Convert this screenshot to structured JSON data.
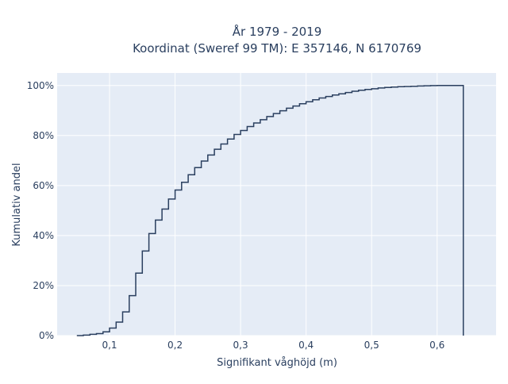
{
  "chart_data": {
    "type": "line",
    "step": true,
    "title_lines": [
      "År 1979 - 2019",
      "Koordinat (Sweref 99 TM): E 357146, N 6170769"
    ],
    "xlabel": "Signifikant våghöjd (m)",
    "ylabel": "Kumulativ andel",
    "xlim": [
      0.02,
      0.69
    ],
    "ylim": [
      0,
      1.05
    ],
    "x_ticks": [
      0.1,
      0.2,
      0.3,
      0.4,
      0.5,
      0.6
    ],
    "x_tick_labels": [
      "0,1",
      "0,2",
      "0,3",
      "0,4",
      "0,5",
      "0,6"
    ],
    "y_ticks": [
      0,
      0.2,
      0.4,
      0.6,
      0.8,
      1.0
    ],
    "y_tick_labels": [
      "0%",
      "20%",
      "40%",
      "60%",
      "80%",
      "100%"
    ],
    "grid": true,
    "colors": {
      "line": "#2a3f5f",
      "plot_bg": "#e5ecf6",
      "grid": "#ffffff",
      "text": "#2a3f5f"
    },
    "series": [
      {
        "x": [
          0.05,
          0.06,
          0.07,
          0.08,
          0.09,
          0.1,
          0.11,
          0.12,
          0.13,
          0.14,
          0.15,
          0.16,
          0.17,
          0.18,
          0.19,
          0.2,
          0.21,
          0.22,
          0.23,
          0.24,
          0.25,
          0.26,
          0.27,
          0.28,
          0.29,
          0.3,
          0.31,
          0.32,
          0.33,
          0.34,
          0.35,
          0.36,
          0.37,
          0.38,
          0.39,
          0.4,
          0.41,
          0.42,
          0.43,
          0.44,
          0.45,
          0.46,
          0.47,
          0.48,
          0.49,
          0.5,
          0.51,
          0.52,
          0.53,
          0.54,
          0.55,
          0.56,
          0.57,
          0.58,
          0.59,
          0.6,
          0.61,
          0.62,
          0.63,
          0.64
        ],
        "y": [
          0.0,
          0.002,
          0.005,
          0.008,
          0.015,
          0.03,
          0.054,
          0.095,
          0.16,
          0.25,
          0.338,
          0.408,
          0.462,
          0.506,
          0.546,
          0.582,
          0.613,
          0.643,
          0.672,
          0.698,
          0.722,
          0.745,
          0.766,
          0.786,
          0.804,
          0.82,
          0.836,
          0.85,
          0.863,
          0.876,
          0.888,
          0.899,
          0.909,
          0.918,
          0.927,
          0.935,
          0.943,
          0.95,
          0.956,
          0.962,
          0.967,
          0.972,
          0.977,
          0.981,
          0.984,
          0.987,
          0.99,
          0.992,
          0.994,
          0.995,
          0.996,
          0.997,
          0.998,
          0.999,
          0.9995,
          1.0,
          1.0,
          1.0,
          1.0,
          1.0
        ]
      }
    ]
  }
}
